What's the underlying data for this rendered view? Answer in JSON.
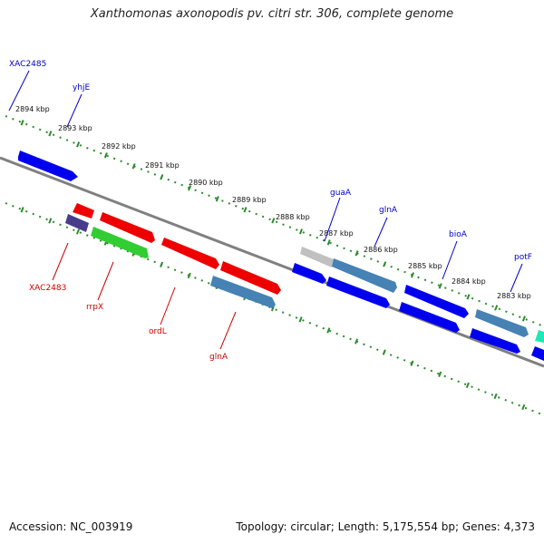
{
  "title": "Xanthomonas axonopodis pv. citri str. 306, complete genome",
  "footer": {
    "accession": "Accession: NC_003919",
    "stats": "Topology: circular; Length: 5,175,554 bp; Genes: 4,373"
  },
  "colors": {
    "forward_label": "#0000cc",
    "reverse_label": "#cc0000",
    "tick": "#2e8b2e",
    "backbone": "#808080"
  },
  "tick_labels": [
    "2894 kbp",
    "2893 kbp",
    "2892 kbp",
    "2891 kbp",
    "2890 kbp",
    "2889 kbp",
    "2888 kbp",
    "2887 kbp",
    "2886 kbp",
    "2885 kbp",
    "2884 kbp",
    "2883 kbp"
  ],
  "forward_labels": [
    "XAC2485",
    "yhjE",
    "guaA",
    "glnA",
    "bioA",
    "potF"
  ],
  "reverse_labels": [
    "XAC2483",
    "rrpX",
    "ordL",
    "glnA"
  ]
}
